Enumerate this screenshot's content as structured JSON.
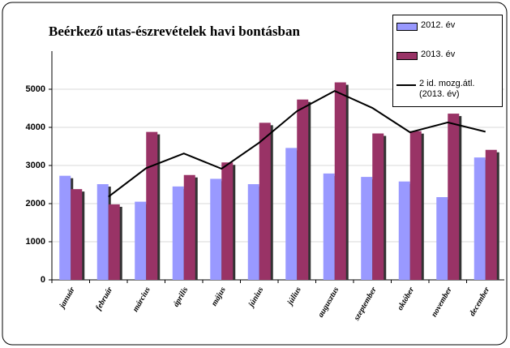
{
  "chart_data": {
    "type": "bar",
    "title": "Beérkező utas-észrevételek  havi bontásban",
    "categories": [
      "január",
      "február",
      "március",
      "április",
      "május",
      "június",
      "július",
      "augusztus",
      "szeptember",
      "október",
      "november",
      "december"
    ],
    "series": [
      {
        "name": "2012. év",
        "color": "#9999ff",
        "values": [
          2730,
          2510,
          2050,
          2450,
          2650,
          2510,
          3460,
          2790,
          2700,
          2580,
          2170,
          3210
        ]
      },
      {
        "name": "2013. év",
        "color": "#993366",
        "values": [
          2380,
          1980,
          3880,
          2750,
          3080,
          4120,
          4730,
          5180,
          3840,
          3900,
          4360,
          3410
        ]
      },
      {
        "name": "2 id. mozg.átl. (2013. év)",
        "type": "line",
        "color": "#000000",
        "values": [
          null,
          2180,
          2930,
          3315,
          2915,
          3600,
          4425,
          4955,
          4510,
          3870,
          4130,
          3885
        ]
      }
    ],
    "ylim": [
      0,
      6000
    ],
    "yticks": [
      0,
      1000,
      2000,
      3000,
      4000,
      5000
    ],
    "grid": true,
    "legend": "top-right"
  }
}
